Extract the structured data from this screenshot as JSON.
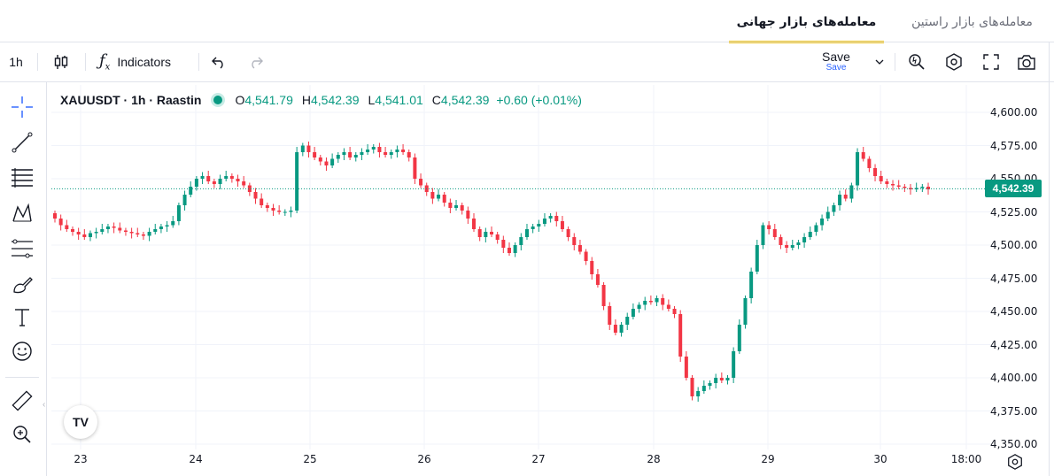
{
  "tabs": {
    "active": "معامله‌های بازار جهانی",
    "inactive": "معامله‌های بازار راستین"
  },
  "toolbar": {
    "interval": "1h",
    "indicators_label": "Indicators",
    "save_label": "Save",
    "save_sub": "Save",
    "icons": [
      "candles-icon",
      "fx-icon",
      "undo-icon",
      "redo-icon",
      "chevron-down-icon",
      "quick-search-icon",
      "settings-hex-icon",
      "fullscreen-icon",
      "camera-icon"
    ]
  },
  "legend": {
    "symbol": "XAUUSDT · 1h · Raastin",
    "o_label": "O",
    "o_value": "4,541.79",
    "h_label": "H",
    "h_value": "4,542.39",
    "l_label": "L",
    "l_value": "4,541.01",
    "c_label": "C",
    "c_value": "4,542.39",
    "change": "+0.60 (+0.01%)"
  },
  "left_tools": [
    "crosshair-icon",
    "trend-line-icon",
    "horizontal-lines-icon",
    "pattern-icon",
    "fib-icon",
    "brush-icon",
    "text-icon",
    "emoji-icon",
    "ruler-icon",
    "zoom-in-icon"
  ],
  "colors": {
    "up": "#089981",
    "down": "#f23645",
    "accent": "#f0c419"
  },
  "chart_data": {
    "type": "candlestick",
    "symbol": "XAUUSDT",
    "interval": "1h",
    "last_price": "4,542.39",
    "last_price_value": 4542.39,
    "y_ticks": [
      "4,600.00",
      "4,575.00",
      "4,550.00",
      "4,525.00",
      "4,500.00",
      "4,475.00",
      "4,450.00",
      "4,425.00",
      "4,400.00",
      "4,375.00",
      "4,350.00"
    ],
    "ylim": [
      4350,
      4600
    ],
    "x_ticks": [
      "23",
      "24",
      "25",
      "26",
      "27",
      "28",
      "29",
      "30",
      "18:00"
    ],
    "grid": true,
    "series_close": [
      4520,
      4515,
      4512,
      4510,
      4508,
      4506,
      4509,
      4510,
      4512,
      4514,
      4513,
      4511,
      4510,
      4509,
      4508,
      4507,
      4510,
      4512,
      4514,
      4515,
      4518,
      4530,
      4538,
      4544,
      4550,
      4552,
      4548,
      4546,
      4550,
      4552,
      4550,
      4548,
      4545,
      4540,
      4535,
      4530,
      4528,
      4526,
      4525,
      4525,
      4526,
      4570,
      4575,
      4570,
      4566,
      4563,
      4560,
      4565,
      4568,
      4570,
      4566,
      4568,
      4570,
      4572,
      4574,
      4570,
      4568,
      4570,
      4572,
      4570,
      4566,
      4550,
      4545,
      4540,
      4535,
      4538,
      4532,
      4528,
      4530,
      4526,
      4520,
      4512,
      4506,
      4510,
      4508,
      4504,
      4498,
      4494,
      4500,
      4506,
      4512,
      4514,
      4516,
      4520,
      4522,
      4518,
      4512,
      4506,
      4500,
      4495,
      4488,
      4478,
      4470,
      4454,
      4440,
      4434,
      4440,
      4446,
      4452,
      4455,
      4458,
      4457,
      4460,
      4455,
      4452,
      4448,
      4416,
      4400,
      4386,
      4390,
      4394,
      4396,
      4400,
      4398,
      4400,
      4420,
      4440,
      4460,
      4480,
      4500,
      4515,
      4512,
      4506,
      4500,
      4498,
      4500,
      4502,
      4506,
      4510,
      4515,
      4520,
      4525,
      4530,
      4538,
      4535,
      4545,
      4570,
      4565,
      4558,
      4552,
      4548,
      4546,
      4545,
      4544,
      4543,
      4542,
      4543,
      4544,
      4542
    ]
  }
}
